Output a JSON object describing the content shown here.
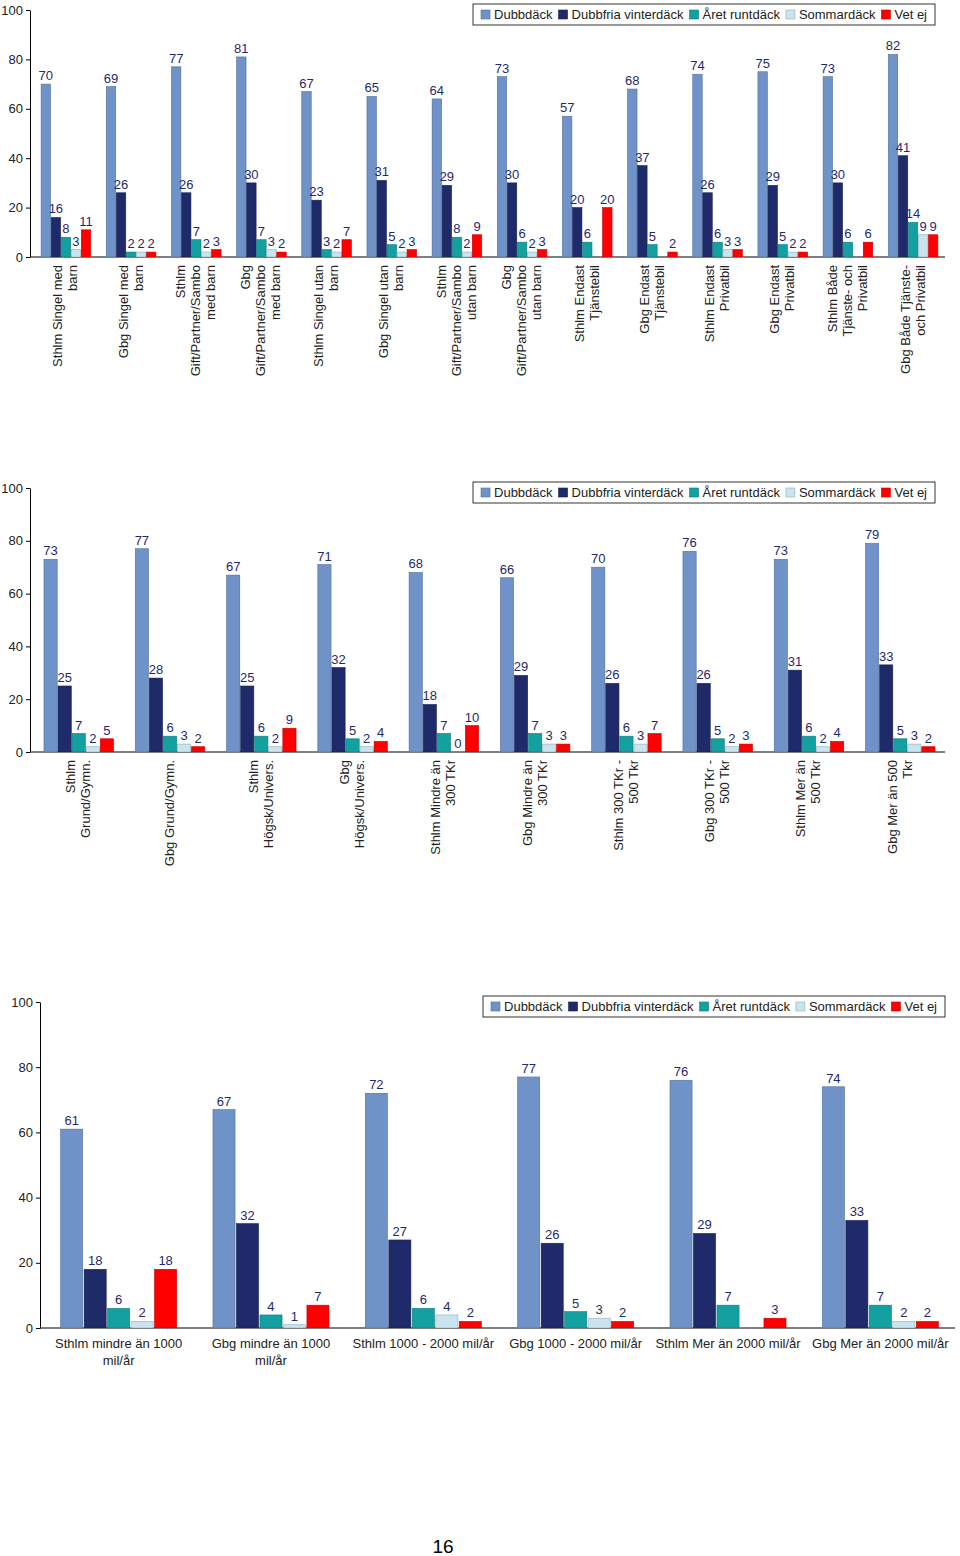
{
  "chart_data": [
    {
      "type": "bar",
      "categories": [
        "Sthlm Singel med barn",
        "Gbg Singel med barn",
        "Sthlm Gift/Partner/Sambo med barn",
        "Gbg Gift/Partner/Sambo med barn",
        "Sthlm Singel utan barn",
        "Gbg Singel utan barn",
        "Sthlm Gift/Partner/Sambo utan barn",
        "Gbg Gift/Partner/Sambo utan barn",
        "Sthlm Endast Tjänstebil",
        "Gbg Endast Tjänstebil",
        "Sthlm Endast Privatbil",
        "Gbg Endast Privatbil",
        "Sthlm Både Tjänste- och Privatbil",
        "Gbg Både Tjänste- och Privatbil"
      ],
      "series": [
        {
          "name": "Dubbdäck",
          "color": "#6f93c9",
          "values": [
            70,
            69,
            77,
            81,
            67,
            65,
            64,
            73,
            57,
            68,
            74,
            75,
            73,
            82
          ]
        },
        {
          "name": "Dubbfria vinterdäck",
          "color": "#1f2a6b",
          "values": [
            16,
            26,
            26,
            30,
            23,
            31,
            29,
            30,
            20,
            37,
            26,
            29,
            30,
            41
          ]
        },
        {
          "name": "Året runtdäck",
          "color": "#13a0a0",
          "values": [
            8,
            2,
            7,
            7,
            3,
            5,
            8,
            6,
            6,
            5,
            6,
            5,
            6,
            14
          ]
        },
        {
          "name": "Sommardäck",
          "color": "#c9e4ee",
          "values": [
            3,
            2,
            2,
            3,
            2,
            2,
            2,
            2,
            null,
            null,
            3,
            2,
            null,
            9
          ]
        },
        {
          "name": "Vet ej",
          "color": "#ff0000",
          "values": [
            11,
            2,
            3,
            2,
            7,
            3,
            9,
            3,
            20,
            2,
            3,
            2,
            6,
            9
          ]
        }
      ],
      "ylim": [
        0,
        100
      ],
      "yticks": [
        0,
        20,
        40,
        60,
        80,
        100
      ],
      "data_labels": true,
      "legend": "top-right"
    },
    {
      "type": "bar",
      "categories": [
        "Sthlm Grund/Gymn.",
        "Gbg Grund/Gymn.",
        "Sthlm Högsk/Univers.",
        "Gbg Högsk/Univers.",
        "Sthlm Mindre än 300 TKr",
        "Gbg Mindre än 300 TKr",
        "Sthlm 300 TKr - 500 Tkr",
        "Gbg 300 TKr - 500 Tkr",
        "Sthlm Mer än 500 Tkr",
        "Gbg Mer än 500 Tkr"
      ],
      "series": [
        {
          "name": "Dubbdäck",
          "color": "#6f93c9",
          "values": [
            73,
            77,
            67,
            71,
            68,
            66,
            70,
            76,
            73,
            79
          ]
        },
        {
          "name": "Dubbfria vinterdäck",
          "color": "#1f2a6b",
          "values": [
            25,
            28,
            25,
            32,
            18,
            29,
            26,
            26,
            31,
            33
          ]
        },
        {
          "name": "Året runtdäck",
          "color": "#13a0a0",
          "values": [
            7,
            6,
            6,
            5,
            7,
            7,
            6,
            5,
            6,
            5
          ]
        },
        {
          "name": "Sommardäck",
          "color": "#c9e4ee",
          "values": [
            2,
            3,
            2,
            2,
            0,
            3,
            3,
            2,
            2,
            3
          ]
        },
        {
          "name": "Vet ej",
          "color": "#ff0000",
          "values": [
            5,
            2,
            9,
            4,
            10,
            3,
            7,
            3,
            4,
            2
          ]
        }
      ],
      "ylim": [
        0,
        100
      ],
      "yticks": [
        0,
        20,
        40,
        60,
        80,
        100
      ],
      "data_labels": true,
      "legend": "top-right"
    },
    {
      "type": "bar",
      "categories": [
        "Sthlm mindre än 1000 mil/år",
        "Gbg mindre än 1000 mil/år",
        "Sthlm 1000 - 2000 mil/år",
        "Gbg 1000 - 2000 mil/år",
        "Sthlm Mer än 2000 mil/år",
        "Gbg Mer än 2000 mil/år"
      ],
      "series": [
        {
          "name": "Dubbdäck",
          "color": "#6f93c9",
          "values": [
            61,
            67,
            72,
            77,
            76,
            74
          ]
        },
        {
          "name": "Dubbfria vinterdäck",
          "color": "#1f2a6b",
          "values": [
            18,
            32,
            27,
            26,
            29,
            33
          ]
        },
        {
          "name": "Året runtdäck",
          "color": "#13a0a0",
          "values": [
            6,
            4,
            6,
            5,
            7,
            7
          ]
        },
        {
          "name": "Sommardäck",
          "color": "#c9e4ee",
          "values": [
            2,
            1,
            4,
            3,
            null,
            2
          ]
        },
        {
          "name": "Vet ej",
          "color": "#ff0000",
          "values": [
            18,
            7,
            2,
            2,
            3,
            2
          ]
        }
      ],
      "ylim": [
        0,
        100
      ],
      "yticks": [
        0,
        20,
        40,
        60,
        80,
        100
      ],
      "data_labels": true,
      "legend": "top-right"
    }
  ],
  "page_number": 16
}
